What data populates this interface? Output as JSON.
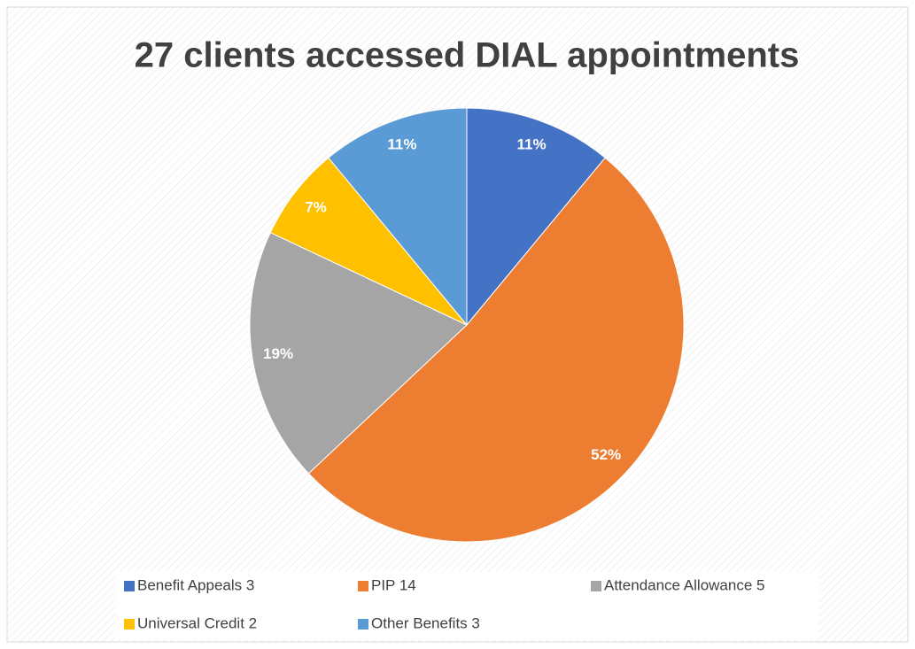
{
  "chart_data": {
    "type": "pie",
    "title": "27 clients accessed DIAL appointments",
    "categories": [
      "Benefit Appeals 3",
      "PIP 14",
      "Attendance Allowance 5",
      "Universal Credit 2",
      "Other Benefits 3"
    ],
    "values": [
      11,
      52,
      19,
      7,
      11
    ],
    "value_labels": [
      "11%",
      "52%",
      "19%",
      "7%",
      "11%"
    ],
    "colors": [
      "#4472c4",
      "#ed7d31",
      "#a5a5a5",
      "#ffc000",
      "#5b9bd5"
    ],
    "legend": "bottom"
  }
}
